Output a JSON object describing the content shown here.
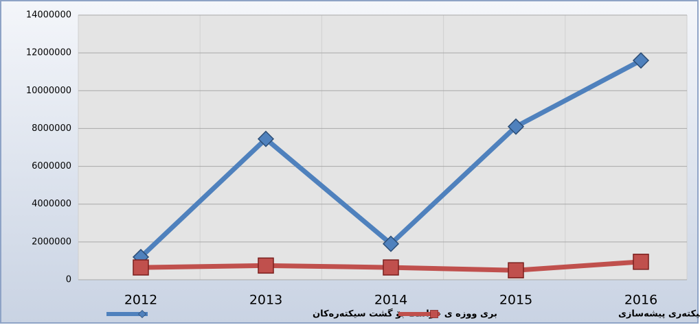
{
  "chart_data": {
    "type": "line",
    "categories": [
      "2012",
      "2013",
      "2014",
      "2015",
      "2016"
    ],
    "series": [
      {
        "name": "بری ووزە ی خواست بۆ گشت سیکتەرەکان",
        "color": "#4f81bd",
        "marker": "diamond",
        "values": [
          1200000,
          7450000,
          1900000,
          8100000,
          11600000
        ]
      },
      {
        "name": "بری ووزە ی خواست بۆ سیکتەری پیشەسازی",
        "color": "#c0504d",
        "marker": "square",
        "values": [
          650000,
          750000,
          650000,
          500000,
          950000
        ]
      }
    ],
    "ylim": [
      0,
      14000000
    ],
    "yticks": [
      0,
      2000000,
      4000000,
      6000000,
      8000000,
      10000000,
      12000000,
      14000000
    ],
    "grid": true,
    "legend": "bottom"
  }
}
